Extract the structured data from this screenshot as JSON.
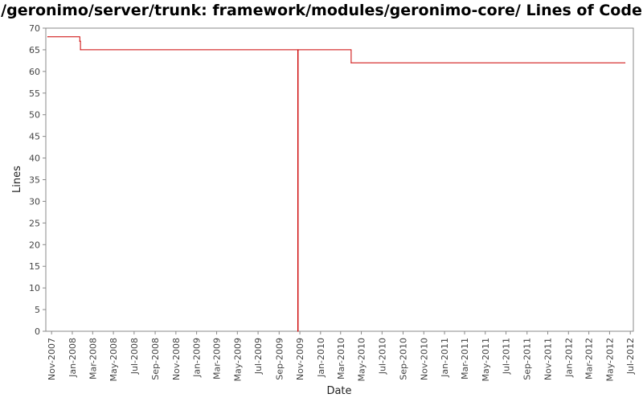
{
  "chart_data": {
    "type": "line",
    "title": "/geronimo/server/trunk: framework/modules/geronimo-core/ Lines of Code",
    "xlabel": "Date",
    "ylabel": "Lines",
    "ylim": [
      0,
      70
    ],
    "y_ticks": [
      0,
      5,
      10,
      15,
      20,
      25,
      30,
      35,
      40,
      45,
      50,
      55,
      60,
      65,
      70
    ],
    "xlim": [
      "2007-10-15",
      "2012-07-10"
    ],
    "x_ticks": [
      {
        "date": "2007-11-01",
        "label": "Nov-2007"
      },
      {
        "date": "2008-01-01",
        "label": "Jan-2008"
      },
      {
        "date": "2008-03-01",
        "label": "Mar-2008"
      },
      {
        "date": "2008-05-01",
        "label": "May-2008"
      },
      {
        "date": "2008-07-01",
        "label": "Jul-2008"
      },
      {
        "date": "2008-09-01",
        "label": "Sep-2008"
      },
      {
        "date": "2008-11-01",
        "label": "Nov-2008"
      },
      {
        "date": "2009-01-01",
        "label": "Jan-2009"
      },
      {
        "date": "2009-03-01",
        "label": "Mar-2009"
      },
      {
        "date": "2009-05-01",
        "label": "May-2009"
      },
      {
        "date": "2009-07-01",
        "label": "Jul-2009"
      },
      {
        "date": "2009-09-01",
        "label": "Sep-2009"
      },
      {
        "date": "2009-11-01",
        "label": "Nov-2009"
      },
      {
        "date": "2010-01-01",
        "label": "Jan-2010"
      },
      {
        "date": "2010-03-01",
        "label": "Mar-2010"
      },
      {
        "date": "2010-05-01",
        "label": "May-2010"
      },
      {
        "date": "2010-07-01",
        "label": "Jul-2010"
      },
      {
        "date": "2010-09-01",
        "label": "Sep-2010"
      },
      {
        "date": "2010-11-01",
        "label": "Nov-2010"
      },
      {
        "date": "2011-01-01",
        "label": "Jan-2011"
      },
      {
        "date": "2011-03-01",
        "label": "Mar-2011"
      },
      {
        "date": "2011-05-01",
        "label": "May-2011"
      },
      {
        "date": "2011-07-01",
        "label": "Jul-2011"
      },
      {
        "date": "2011-09-01",
        "label": "Sep-2011"
      },
      {
        "date": "2011-11-01",
        "label": "Nov-2011"
      },
      {
        "date": "2012-01-01",
        "label": "Jan-2012"
      },
      {
        "date": "2012-03-01",
        "label": "Mar-2012"
      },
      {
        "date": "2012-05-01",
        "label": "May-2012"
      },
      {
        "date": "2012-07-01",
        "label": "Jul-2012"
      }
    ],
    "grid": false,
    "line_color": "#cc0000",
    "series": [
      {
        "step": true,
        "points": [
          {
            "x": "2007-10-21",
            "y": 68
          },
          {
            "x": "2008-01-23",
            "y": 67
          },
          {
            "x": "2008-01-25",
            "y": 65
          },
          {
            "x": "2009-10-26",
            "y": 0
          },
          {
            "x": "2009-10-27",
            "y": 65
          },
          {
            "x": "2010-04-01",
            "y": 62
          },
          {
            "x": "2012-06-15",
            "y": 62
          }
        ]
      }
    ]
  }
}
